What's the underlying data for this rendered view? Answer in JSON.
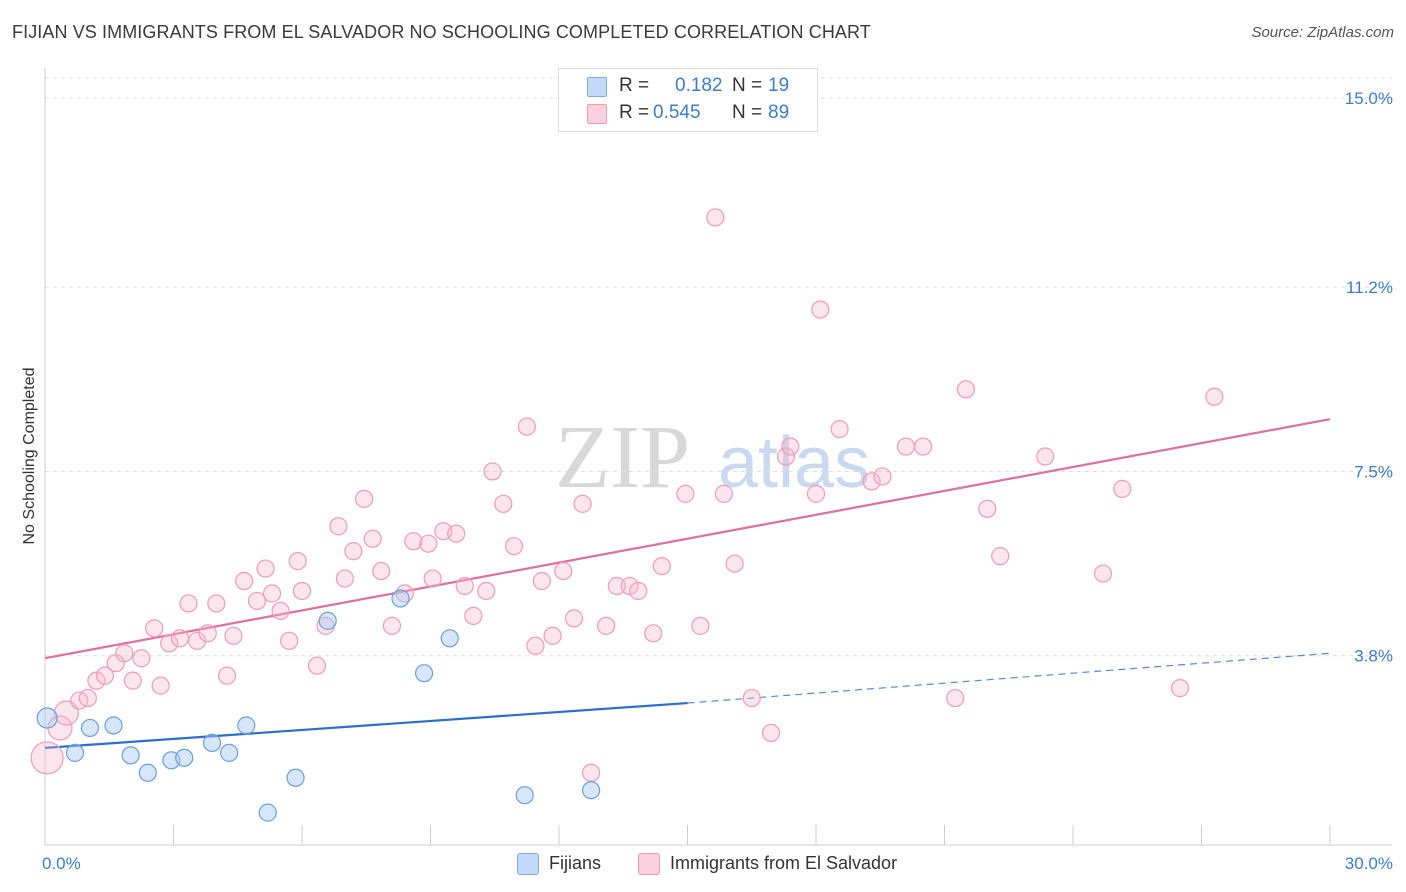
{
  "title": "FIJIAN VS IMMIGRANTS FROM EL SALVADOR NO SCHOOLING COMPLETED CORRELATION CHART",
  "source": "Source: ZipAtlas.com",
  "watermark": {
    "zip": "ZIP",
    "atlas": "atlas"
  },
  "legend": {
    "r_label": "R =",
    "n_label": "N =",
    "series1": {
      "r": "0.182",
      "n": "19"
    },
    "series2": {
      "r": "0.545",
      "n": "89"
    }
  },
  "bottom_legend": {
    "series1": "Fijians",
    "series2": "Immigrants from El Salvador"
  },
  "chart_data": {
    "type": "scatter",
    "title": "FIJIAN VS IMMIGRANTS FROM EL SALVADOR NO SCHOOLING COMPLETED CORRELATION CHART",
    "xlabel": "",
    "ylabel": "No Schooling Completed",
    "xlim": [
      0,
      30
    ],
    "ylim": [
      0,
      15
    ],
    "x_tick_labels": [
      "0.0%",
      "30.0%"
    ],
    "y_ticks": [
      3.8,
      7.5,
      11.2,
      15.0
    ],
    "y_tick_labels": [
      "3.8%",
      "7.5%",
      "11.2%",
      "15.0%"
    ],
    "grid": true,
    "legend_position": "top-center",
    "colors": {
      "fijians": "#6a9fe0",
      "salvador": "#f29ab8",
      "fijians_line": "#2a6fcf",
      "salvador_line": "#e0709a"
    },
    "series": [
      {
        "name": "Fijians",
        "r": 0.182,
        "n": 19,
        "trend": {
          "x0": 0,
          "y0": 1.95,
          "x1": 15,
          "y1": 2.85,
          "dash_x_end": 30,
          "dash_y_end": 3.85
        },
        "points": [
          {
            "x": 0.05,
            "y": 2.55
          },
          {
            "x": 0.7,
            "y": 1.85
          },
          {
            "x": 1.05,
            "y": 2.35
          },
          {
            "x": 1.6,
            "y": 2.4
          },
          {
            "x": 2.0,
            "y": 1.8
          },
          {
            "x": 2.4,
            "y": 1.45
          },
          {
            "x": 2.95,
            "y": 1.7
          },
          {
            "x": 3.25,
            "y": 1.75
          },
          {
            "x": 3.9,
            "y": 2.05
          },
          {
            "x": 4.3,
            "y": 1.85
          },
          {
            "x": 4.7,
            "y": 2.4
          },
          {
            "x": 5.2,
            "y": 0.65
          },
          {
            "x": 5.85,
            "y": 1.35
          },
          {
            "x": 6.6,
            "y": 4.5
          },
          {
            "x": 8.3,
            "y": 4.95
          },
          {
            "x": 8.85,
            "y": 3.45
          },
          {
            "x": 9.45,
            "y": 4.15
          },
          {
            "x": 11.2,
            "y": 1.0
          },
          {
            "x": 12.75,
            "y": 1.1
          }
        ]
      },
      {
        "name": "Immigrants from El Salvador",
        "r": 0.545,
        "n": 89,
        "trend": {
          "x0": 0,
          "y0": 3.75,
          "x1": 30,
          "y1": 8.55
        },
        "points": [
          {
            "x": 0.05,
            "y": 1.75
          },
          {
            "x": 0.35,
            "y": 2.35
          },
          {
            "x": 0.5,
            "y": 2.65
          },
          {
            "x": 0.8,
            "y": 2.9
          },
          {
            "x": 1.0,
            "y": 2.95
          },
          {
            "x": 1.2,
            "y": 3.3
          },
          {
            "x": 1.4,
            "y": 3.4
          },
          {
            "x": 1.65,
            "y": 3.65
          },
          {
            "x": 1.85,
            "y": 3.85
          },
          {
            "x": 2.05,
            "y": 3.3
          },
          {
            "x": 2.25,
            "y": 3.75
          },
          {
            "x": 2.55,
            "y": 4.35
          },
          {
            "x": 2.7,
            "y": 3.2
          },
          {
            "x": 2.9,
            "y": 4.05
          },
          {
            "x": 3.15,
            "y": 4.15
          },
          {
            "x": 3.35,
            "y": 4.85
          },
          {
            "x": 3.55,
            "y": 4.1
          },
          {
            "x": 3.8,
            "y": 4.25
          },
          {
            "x": 4.0,
            "y": 4.85
          },
          {
            "x": 4.25,
            "y": 3.4
          },
          {
            "x": 4.4,
            "y": 4.2
          },
          {
            "x": 4.65,
            "y": 5.3
          },
          {
            "x": 4.95,
            "y": 4.9
          },
          {
            "x": 5.15,
            "y": 5.55
          },
          {
            "x": 5.3,
            "y": 5.05
          },
          {
            "x": 5.5,
            "y": 4.7
          },
          {
            "x": 5.7,
            "y": 4.1
          },
          {
            "x": 5.9,
            "y": 5.7
          },
          {
            "x": 6.0,
            "y": 5.1
          },
          {
            "x": 6.35,
            "y": 3.6
          },
          {
            "x": 6.55,
            "y": 4.4
          },
          {
            "x": 6.85,
            "y": 6.4
          },
          {
            "x": 7.0,
            "y": 5.35
          },
          {
            "x": 7.2,
            "y": 5.9
          },
          {
            "x": 7.45,
            "y": 6.95
          },
          {
            "x": 7.65,
            "y": 6.15
          },
          {
            "x": 7.85,
            "y": 5.5
          },
          {
            "x": 8.1,
            "y": 4.4
          },
          {
            "x": 8.4,
            "y": 5.05
          },
          {
            "x": 8.6,
            "y": 6.1
          },
          {
            "x": 8.95,
            "y": 6.05
          },
          {
            "x": 9.05,
            "y": 5.35
          },
          {
            "x": 9.3,
            "y": 6.3
          },
          {
            "x": 9.6,
            "y": 6.25
          },
          {
            "x": 9.8,
            "y": 5.2
          },
          {
            "x": 10.0,
            "y": 4.6
          },
          {
            "x": 10.3,
            "y": 5.1
          },
          {
            "x": 10.45,
            "y": 7.5
          },
          {
            "x": 10.7,
            "y": 6.85
          },
          {
            "x": 10.95,
            "y": 6.0
          },
          {
            "x": 11.25,
            "y": 8.4
          },
          {
            "x": 11.45,
            "y": 4.0
          },
          {
            "x": 11.6,
            "y": 5.3
          },
          {
            "x": 11.85,
            "y": 4.2
          },
          {
            "x": 12.1,
            "y": 5.5
          },
          {
            "x": 12.35,
            "y": 4.55
          },
          {
            "x": 12.55,
            "y": 6.85
          },
          {
            "x": 12.75,
            "y": 1.45
          },
          {
            "x": 13.1,
            "y": 4.4
          },
          {
            "x": 13.35,
            "y": 5.2
          },
          {
            "x": 13.65,
            "y": 5.2
          },
          {
            "x": 13.85,
            "y": 5.1
          },
          {
            "x": 14.2,
            "y": 4.25
          },
          {
            "x": 14.4,
            "y": 5.6
          },
          {
            "x": 14.95,
            "y": 7.05
          },
          {
            "x": 15.3,
            "y": 4.4
          },
          {
            "x": 15.65,
            "y": 12.6
          },
          {
            "x": 15.85,
            "y": 7.05
          },
          {
            "x": 16.1,
            "y": 5.65
          },
          {
            "x": 16.5,
            "y": 2.95
          },
          {
            "x": 16.95,
            "y": 2.25
          },
          {
            "x": 17.3,
            "y": 7.8
          },
          {
            "x": 17.4,
            "y": 8.0
          },
          {
            "x": 18.0,
            "y": 7.05
          },
          {
            "x": 18.1,
            "y": 10.75
          },
          {
            "x": 18.55,
            "y": 8.35
          },
          {
            "x": 19.3,
            "y": 7.3
          },
          {
            "x": 19.55,
            "y": 7.4
          },
          {
            "x": 20.1,
            "y": 8.0
          },
          {
            "x": 20.5,
            "y": 8.0
          },
          {
            "x": 21.25,
            "y": 2.95
          },
          {
            "x": 21.5,
            "y": 9.15
          },
          {
            "x": 22.0,
            "y": 6.75
          },
          {
            "x": 22.3,
            "y": 5.8
          },
          {
            "x": 23.35,
            "y": 7.8
          },
          {
            "x": 24.7,
            "y": 5.45
          },
          {
            "x": 25.15,
            "y": 7.15
          },
          {
            "x": 26.5,
            "y": 3.15
          },
          {
            "x": 27.3,
            "y": 9.0
          }
        ]
      }
    ]
  }
}
